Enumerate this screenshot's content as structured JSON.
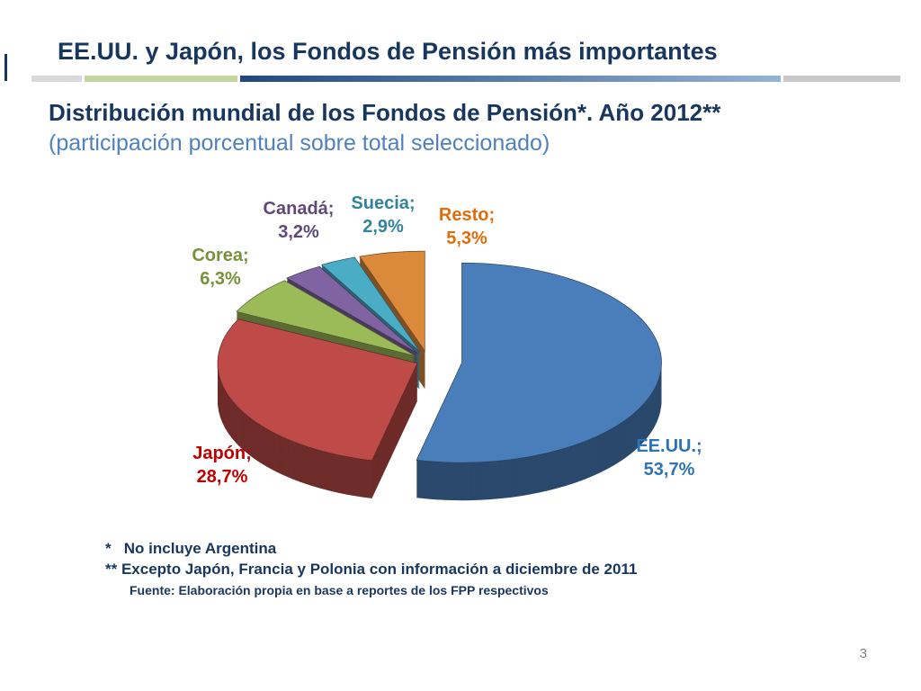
{
  "slide": {
    "title": "EE.UU. y Japón, los Fondos de Pensión más importantes",
    "heading": "Distribución mundial de los Fondos de Pensión*. Año 2012**",
    "subheading": "(participación porcentual sobre total seleccionado)",
    "footnote1": "*   No incluye Argentina",
    "footnote2": "** Excepto Japón, Francia y Polonia con información a diciembre de 2011",
    "source": "Fuente: Elaboración propia en base a reportes de los FPP respectivos",
    "page_number": "3",
    "colors": {
      "title": "#17375E",
      "subheading": "#4F81BD",
      "accent_gray": "#D9D9D9",
      "accent_green": "#C3D69B",
      "accent_blue_dark": "#1F497D",
      "accent_blue_light": "#95B3D7"
    }
  },
  "chart_data": {
    "type": "pie",
    "style": "3d-exploded",
    "title": "Distribución mundial de los Fondos de Pensión. Año 2012",
    "unit": "%",
    "start": "top",
    "direction": "clockwise",
    "legend_position": "data-labels",
    "slices": [
      {
        "label": "EE.UU.",
        "value": 53.7,
        "display": "EE.UU.;",
        "pct": "53,7%",
        "color": "#4A7EBB",
        "label_color": "#2E74B5"
      },
      {
        "label": "Japón",
        "value": 28.7,
        "display": "Japón;",
        "pct": "28,7%",
        "color": "#BE4B48",
        "label_color": "#C00000"
      },
      {
        "label": "Corea",
        "value": 6.3,
        "display": "Corea;",
        "pct": "6,3%",
        "color": "#9BBB59",
        "label_color": "#76933C"
      },
      {
        "label": "Canadá",
        "value": 3.2,
        "display": "Canadá;",
        "pct": "3,2%",
        "color": "#8064A2",
        "label_color": "#5F497A"
      },
      {
        "label": "Suecia",
        "value": 2.9,
        "display": "Suecia;",
        "pct": "2,9%",
        "color": "#4BACC6",
        "label_color": "#31849B"
      },
      {
        "label": "Resto",
        "value": 5.3,
        "display": "Resto;",
        "pct": "5,3%",
        "color": "#DB8A3C",
        "label_color": "#E36C0A"
      }
    ]
  }
}
